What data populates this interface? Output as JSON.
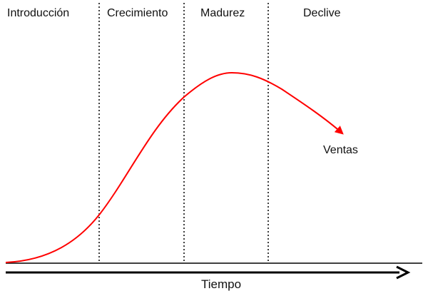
{
  "stages": [
    {
      "name": "Introducción"
    },
    {
      "name": "Crecimiento"
    },
    {
      "name": "Madurez"
    },
    {
      "name": "Declive"
    }
  ],
  "series": {
    "name": "Ventas",
    "color": "#ff0000"
  },
  "axis": {
    "x_label": "Tiempo",
    "color": "#000000"
  },
  "divider_style": "dotted"
}
